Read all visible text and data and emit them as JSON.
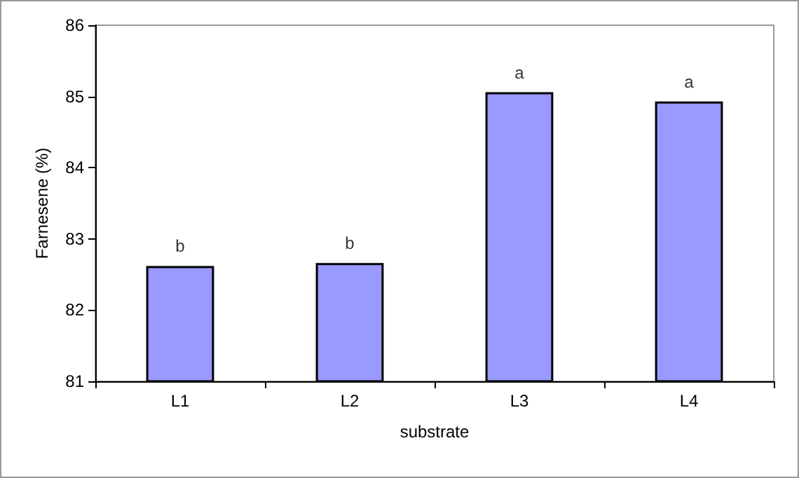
{
  "chart_data": {
    "type": "bar",
    "xlabel": "substrate",
    "ylabel": "Farnesene (%)",
    "categories": [
      "L1",
      "L2",
      "L3",
      "L4"
    ],
    "values": [
      82.62,
      82.66,
      85.06,
      84.93
    ],
    "color": "#9999ff",
    "ylim": [
      81,
      86
    ],
    "yticks": [
      81,
      82,
      83,
      84,
      85,
      86
    ],
    "grid": false,
    "annotations": [
      {
        "text": "b",
        "x": "L1",
        "y": 82.62
      },
      {
        "text": "b",
        "x": "L2",
        "y": 82.66
      },
      {
        "text": "a",
        "x": "L3",
        "y": 85.06
      },
      {
        "text": "a",
        "x": "L4",
        "y": 84.93
      }
    ]
  }
}
